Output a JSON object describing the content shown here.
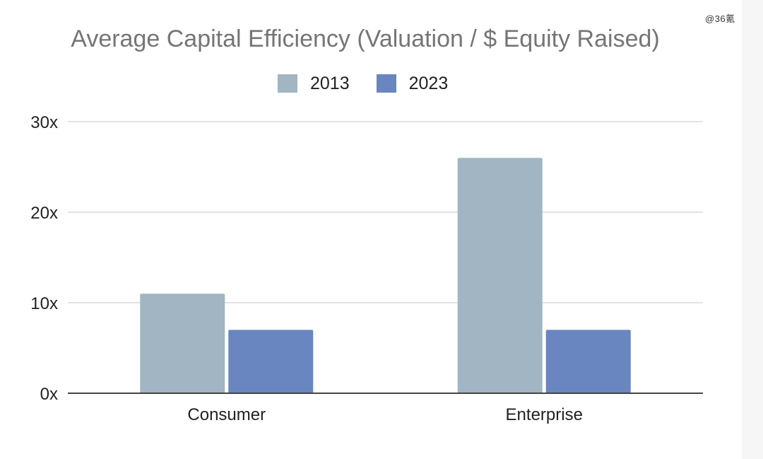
{
  "watermark": "@36氪",
  "colors": {
    "series_2013": "#a1b5c2",
    "series_2023": "#6986c0",
    "grid": "#d9d9d9",
    "axis": "#444444"
  },
  "chart_data": {
    "type": "bar",
    "title": "Average Capital Efficiency (Valuation / $ Equity Raised)",
    "xlabel": "",
    "ylabel": "",
    "categories": [
      "Consumer",
      "Enterprise"
    ],
    "series": [
      {
        "name": "2013",
        "values": [
          11,
          26
        ]
      },
      {
        "name": "2023",
        "values": [
          7,
          7
        ]
      }
    ],
    "ylim": [
      0,
      30
    ],
    "yticks": [
      0,
      10,
      20,
      30
    ],
    "ytick_labels": [
      "0x",
      "10x",
      "20x",
      "30x"
    ],
    "legend_position": "top",
    "grid": true
  }
}
